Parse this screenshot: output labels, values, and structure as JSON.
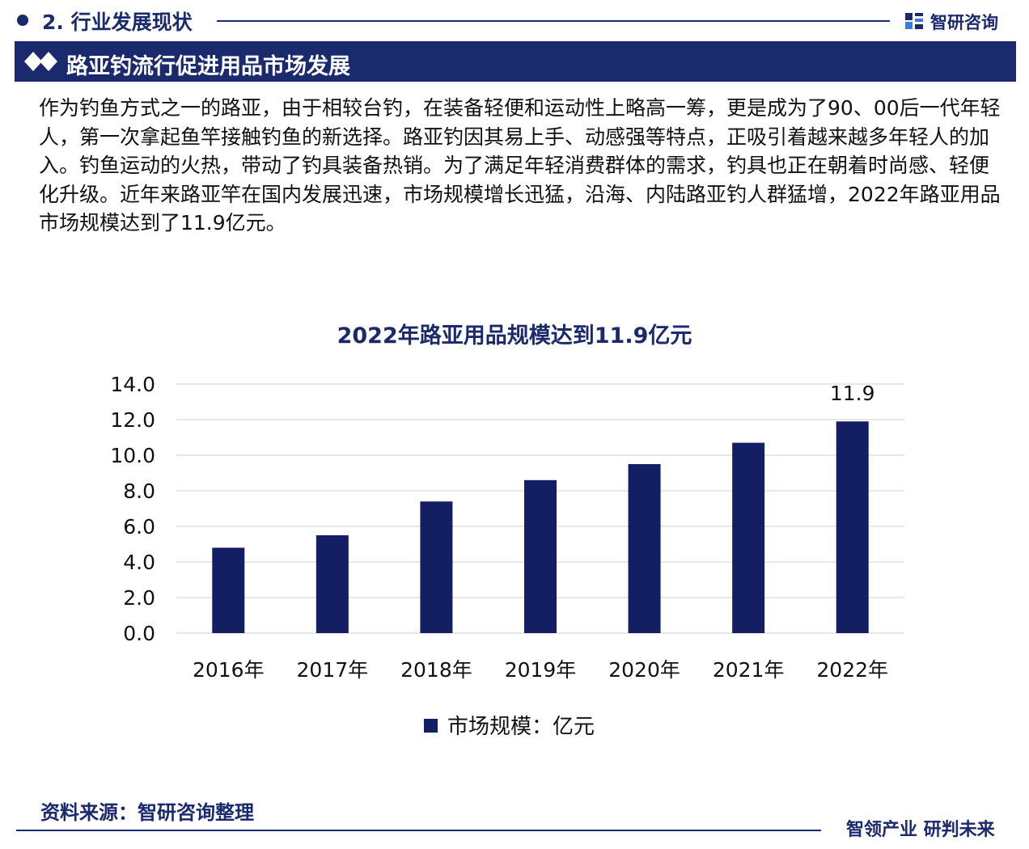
{
  "header": {
    "section_title": "2. 行业发展现状",
    "logo_text": "智研咨询",
    "logo_icon": "zhiyan-logo-icon"
  },
  "banner": {
    "icon": "double-diamond-icon",
    "title": "路亚钓流行促进用品市场发展"
  },
  "paragraph": "作为钓鱼方式之一的路亚，由于相较台钓，在装备轻便和运动性上略高一筹，更是成为了90、00后一代年轻人，第一次拿起鱼竿接触钓鱼的新选择。路亚钓因其易上手、动感强等特点，正吸引着越来越多年轻人的加入。钓鱼运动的火热，带动了钓具装备热销。为了满足年轻消费群体的需求，钓具也正在朝着时尚感、轻便化升级。近年来路亚竿在国内发展迅速，市场规模增长迅猛，沿海、内陆路亚钓人群猛增，2022年路亚用品市场规模达到了11.9亿元。",
  "chart_data": {
    "type": "bar",
    "title": "2022年路亚用品规模达到11.9亿元",
    "categories": [
      "2016年",
      "2017年",
      "2018年",
      "2019年",
      "2020年",
      "2021年",
      "2022年"
    ],
    "series": [
      {
        "name": "市场规模：亿元",
        "values": [
          4.8,
          5.5,
          7.4,
          8.6,
          9.5,
          10.7,
          11.9
        ]
      }
    ],
    "data_labels": [
      "",
      "",
      "",
      "",
      "",
      "",
      "11.9"
    ],
    "yticks": [
      "0.0",
      "2.0",
      "4.0",
      "6.0",
      "8.0",
      "10.0",
      "12.0",
      "14.0"
    ],
    "ylim": [
      0,
      14
    ],
    "xlabel": "",
    "ylabel": "",
    "grid": true,
    "legend_position": "bottom",
    "bar_color": "#141f63",
    "grid_color": "#d9d9d9"
  },
  "footer": {
    "source": "资料来源：智研咨询整理",
    "slogan": "智领产业 研判未来"
  },
  "colors": {
    "brand_navy": "#1a2a6c",
    "bar": "#141f63"
  }
}
